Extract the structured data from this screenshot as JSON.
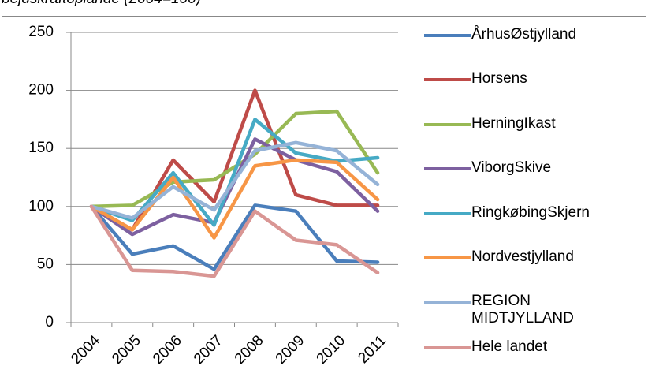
{
  "chart_data": {
    "type": "line",
    "title": "bejdskraftoplande (2004=100)",
    "categories": [
      "2004",
      "2005",
      "2006",
      "2007",
      "2008",
      "2009",
      "2010",
      "2011"
    ],
    "ylim": [
      0,
      250
    ],
    "yticks": [
      0,
      50,
      100,
      150,
      200,
      250
    ],
    "grid": true,
    "series": [
      {
        "name": "ÅrhusØstjylland",
        "color": "#4a7ebb",
        "values": [
          100,
          59,
          66,
          46,
          101,
          96,
          53,
          52
        ]
      },
      {
        "name": "Horsens",
        "color": "#be4b48",
        "values": [
          100,
          80,
          140,
          104,
          200,
          110,
          101,
          101
        ]
      },
      {
        "name": "HerningIkast",
        "color": "#98b954",
        "values": [
          100,
          101,
          121,
          123,
          145,
          180,
          182,
          129
        ]
      },
      {
        "name": "ViborgSkive",
        "color": "#7d60a0",
        "values": [
          100,
          76,
          93,
          86,
          158,
          140,
          130,
          96
        ]
      },
      {
        "name": "RingkøbingSkjern",
        "color": "#46aac5",
        "values": [
          100,
          88,
          129,
          84,
          175,
          146,
          139,
          142
        ]
      },
      {
        "name": "Nordvestjylland",
        "color": "#f79646",
        "values": [
          100,
          80,
          125,
          73,
          135,
          140,
          138,
          106
        ]
      },
      {
        "name": "REGION MIDTJYLLAND",
        "color": "#95b3d7",
        "values": [
          100,
          90,
          117,
          97,
          148,
          155,
          148,
          119
        ]
      },
      {
        "name": "Hele landet",
        "color": "#d99694",
        "values": [
          100,
          45,
          44,
          40,
          96,
          71,
          67,
          43
        ]
      }
    ]
  }
}
